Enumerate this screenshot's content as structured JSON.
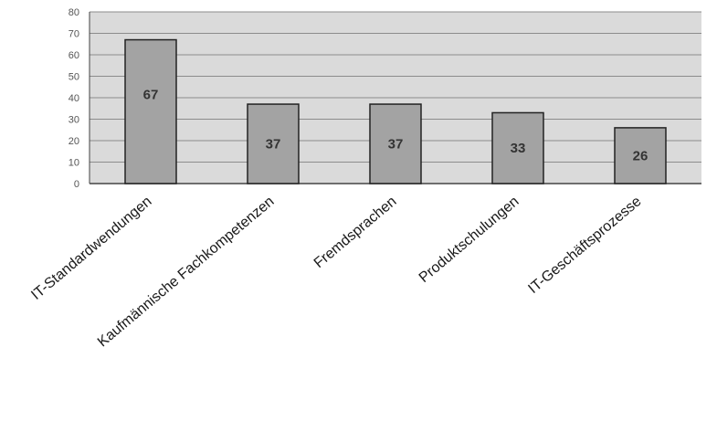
{
  "chart_data": {
    "type": "bar",
    "categories": [
      "IT-Standardwendungen",
      "Kaufmännische Fachkompetenzen",
      "Fremdsprachen",
      "Produktschulungen",
      "IT-Geschäftsprozesse"
    ],
    "values": [
      67,
      37,
      37,
      33,
      26
    ],
    "value_labels": [
      "67",
      "37",
      "37",
      "33",
      "26"
    ],
    "ylim": [
      0,
      80
    ],
    "yticks": [
      "0",
      "10",
      "20",
      "30",
      "40",
      "50",
      "60",
      "70",
      "80"
    ],
    "grid": true,
    "legend": "none",
    "title": "",
    "xlabel": "",
    "ylabel": ""
  },
  "colors": {
    "plot_background": "#dadada",
    "bar_fill": "#a3a3a3",
    "bar_stroke": "#222222",
    "gridline": "#8c8c8c"
  }
}
